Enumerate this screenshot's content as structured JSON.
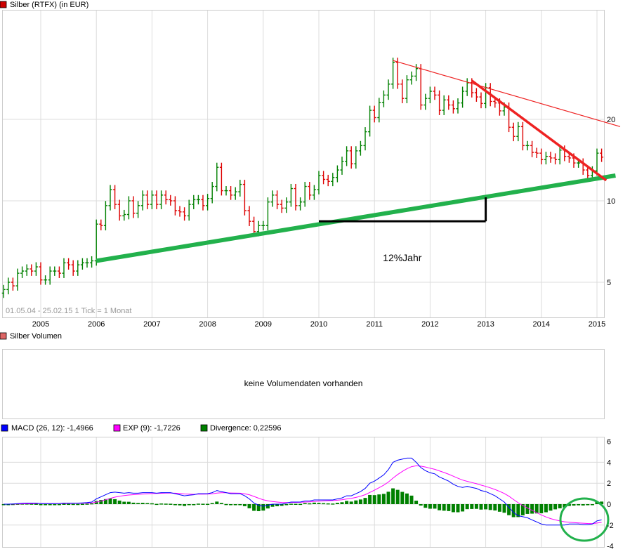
{
  "chart_data": [
    {
      "type": "ohlc",
      "legend": {
        "label": "Silber (RTFX) (in EUR)",
        "color": "#cc0000"
      },
      "range_text": "01.05.04 - 25.02.15   1 Tick = 1 Monat",
      "x_ticks": [
        "2005",
        "2006",
        "2007",
        "2008",
        "2009",
        "2010",
        "2011",
        "2012",
        "2013",
        "2014",
        "2015"
      ],
      "y_ticks": [
        5,
        10,
        20
      ],
      "y_scale": "log",
      "grid": true,
      "start_month": "2004-05",
      "end_month": "2015-02",
      "up_color": "#008000",
      "down_color": "#dd0000",
      "close": [
        4.7,
        5.0,
        4.85,
        5.4,
        5.5,
        5.6,
        5.5,
        5.7,
        5.1,
        5.1,
        5.5,
        5.5,
        5.4,
        5.9,
        5.8,
        5.5,
        5.8,
        5.9,
        5.9,
        6.0,
        8.2,
        8.1,
        9.6,
        11.0,
        9.7,
        8.8,
        8.9,
        10.0,
        9.0,
        9.6,
        10.5,
        9.7,
        10.5,
        9.7,
        10.5,
        10.1,
        10.0,
        9.2,
        9.1,
        8.8,
        9.7,
        10.1,
        10.1,
        9.6,
        10.2,
        11.3,
        13.3,
        10.9,
        10.9,
        10.5,
        10.8,
        11.5,
        9.2,
        8.4,
        7.7,
        8.1,
        8.1,
        9.9,
        10.5,
        9.7,
        9.4,
        9.9,
        11.1,
        9.6,
        9.9,
        11.3,
        10.5,
        11.0,
        12.4,
        12.0,
        11.8,
        12.2,
        13.0,
        14.0,
        15.3,
        13.7,
        15.3,
        16.0,
        18.0,
        21.6,
        20.3,
        23.1,
        24.6,
        27.0,
        32.5,
        27.0,
        23.9,
        28.0,
        28.9,
        30.8,
        22.6,
        23.9,
        25.4,
        24.6,
        21.6,
        23.6,
        22.6,
        21.9,
        23.0,
        25.4,
        27.3,
        25.1,
        24.2,
        22.9,
        26.2,
        23.3,
        23.0,
        21.5,
        22.2,
        18.7,
        17.3,
        18.8,
        16.0,
        16.0,
        15.1,
        15.0,
        14.2,
        14.6,
        14.4,
        14.2,
        15.4,
        14.6,
        14.4,
        13.8,
        13.8,
        13.0,
        12.4,
        12.9,
        15.0,
        14.5
      ],
      "annotations": {
        "support_line": {
          "from": [
            "2006-01",
            6.0
          ],
          "to": [
            "2015-05",
            12.4
          ],
          "color": "#22b14c"
        },
        "resistance_line_long": {
          "from": [
            "2011-05",
            33.0
          ],
          "to": [
            "2015-06",
            18.8
          ],
          "color": "#ee2222"
        },
        "resistance_line_short": {
          "from": [
            "2012-10",
            27.8
          ],
          "to": [
            "2015-03",
            11.9
          ],
          "color": "#ee2222"
        },
        "bracket": {
          "from": [
            "2010-01",
            8.4
          ],
          "to": [
            "2013-01",
            10.3
          ],
          "label": "12%Jahr"
        }
      }
    },
    {
      "type": "empty",
      "legend": {
        "label": "Silber Volumen",
        "color": "#dd6666"
      },
      "message": "keine Volumendaten vorhanden"
    },
    {
      "type": "line+bar",
      "legend": [
        {
          "label": "MACD (26, 12): -1,4966",
          "color": "#0000ff"
        },
        {
          "label": "EXP (9): -1,7226",
          "color": "#ff00ff"
        },
        {
          "label": "Divergence: 0,22596",
          "color": "#008000"
        }
      ],
      "y_ticks": [
        "6",
        "4",
        "2",
        "0",
        "-2",
        "-4"
      ],
      "ylim": [
        -4,
        6
      ],
      "macd": [
        0,
        0,
        0.02,
        0.05,
        0.08,
        0.1,
        0.1,
        0.1,
        0.05,
        0.05,
        0.05,
        0.05,
        0.06,
        0.1,
        0.1,
        0.1,
        0.1,
        0.12,
        0.15,
        0.2,
        0.5,
        0.7,
        0.9,
        1.1,
        1.15,
        1.1,
        1.05,
        1.1,
        1.05,
        1.05,
        1.1,
        1.1,
        1.1,
        1.05,
        1.1,
        1.1,
        1.1,
        1.0,
        0.9,
        0.8,
        0.85,
        0.9,
        1.0,
        1.0,
        1.0,
        1.1,
        1.3,
        1.2,
        1.1,
        1.0,
        1.0,
        1.0,
        0.8,
        0.5,
        0.1,
        -0.1,
        -0.2,
        -0.1,
        0.0,
        0.0,
        0.0,
        0.1,
        0.2,
        0.2,
        0.2,
        0.3,
        0.3,
        0.4,
        0.4,
        0.4,
        0.4,
        0.4,
        0.5,
        0.6,
        0.8,
        0.8,
        1.0,
        1.2,
        1.5,
        2.0,
        2.2,
        2.5,
        2.8,
        3.3,
        4.0,
        4.2,
        4.3,
        4.4,
        4.4,
        4.0,
        3.5,
        3.2,
        3.0,
        2.9,
        2.6,
        2.4,
        2.2,
        1.9,
        1.7,
        1.6,
        1.7,
        1.6,
        1.5,
        1.3,
        1.2,
        1.0,
        0.8,
        0.5,
        0.2,
        -0.3,
        -0.8,
        -1.1,
        -1.2,
        -1.3,
        -1.5,
        -1.7,
        -1.9,
        -2.0,
        -2.0,
        -2.0,
        -2.0,
        -2.0,
        -1.9,
        -1.9,
        -1.9,
        -1.95,
        -1.95,
        -1.9,
        -1.6,
        -1.5
      ],
      "signal_period": 9,
      "highlight_circle_color": "#22b14c"
    }
  ]
}
